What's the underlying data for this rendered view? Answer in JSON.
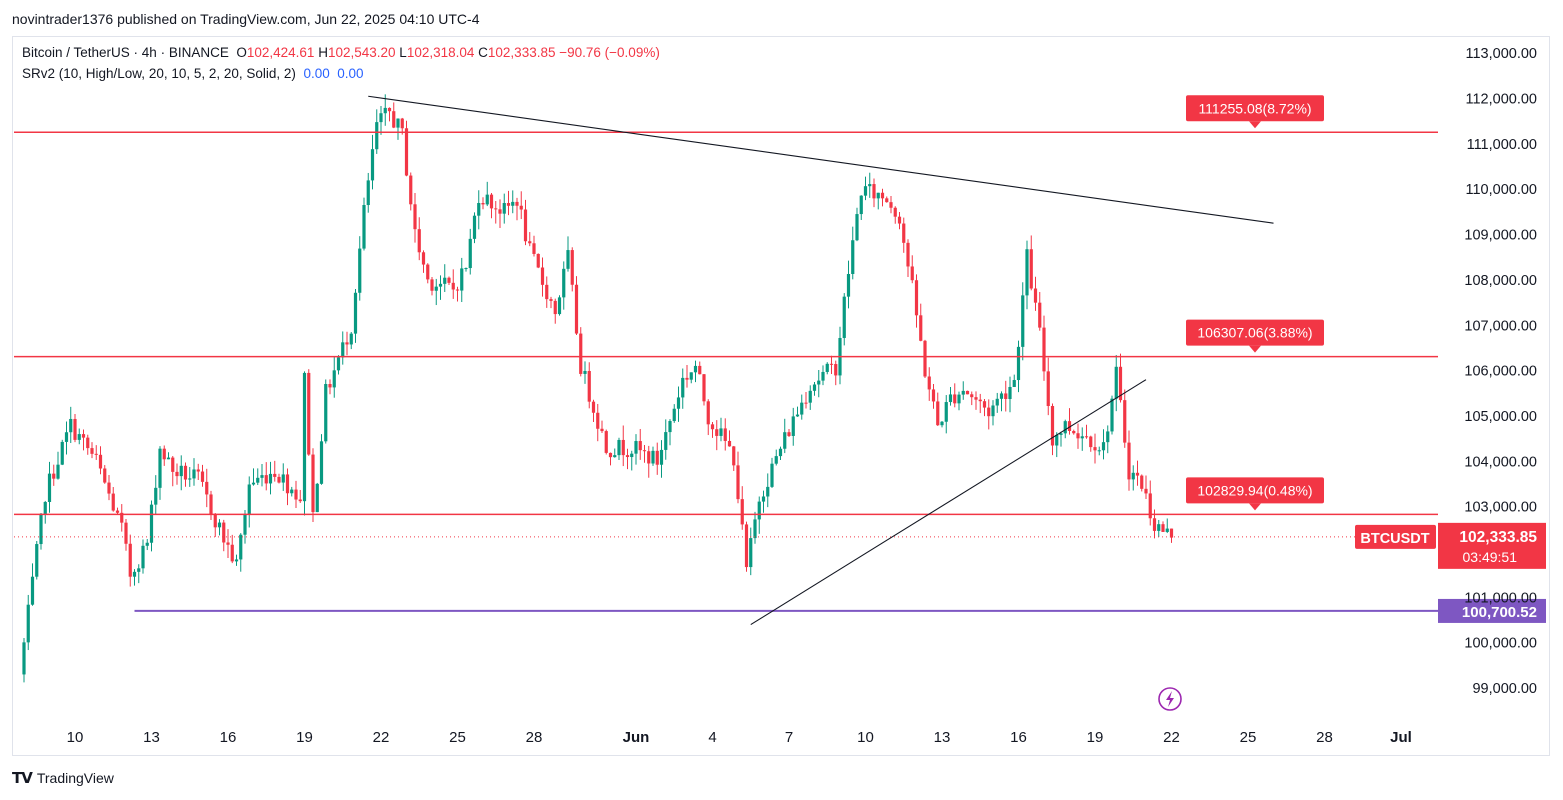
{
  "header": {
    "published_line": "novintrader1376 published on TradingView.com, Jun 22, 2025 04:10 UTC-4"
  },
  "legend": {
    "symbol": "Bitcoin / TetherUS · 4h · BINANCE",
    "open_label": "O",
    "open": "102,424.61",
    "high_label": "H",
    "high": "102,543.20",
    "low_label": "L",
    "low": "102,318.04",
    "close_label": "C",
    "close": "102,333.85",
    "change": "−90.76 (−0.09%)",
    "indicator": "SRv2 (10, High/Low, 20, 10, 5, 2, 20, Solid, 2)",
    "indicator_val1": "0.00",
    "indicator_val2": "0.00"
  },
  "branding": {
    "logo": "TV",
    "name": "TradingView"
  },
  "colors": {
    "up": "#089981",
    "down": "#f23645",
    "support_resistance": "#f23645",
    "support_line": "#7e57c2",
    "trendline": "#131722",
    "price_label": "#f23645"
  },
  "chart_data": {
    "type": "candlestick",
    "symbol": "BTCUSDT",
    "timeframe": "4h",
    "ylim": [
      98500,
      113700
    ],
    "y_ticks": [
      {
        "value": 99000,
        "label": "99,000.00"
      },
      {
        "value": 100000,
        "label": "100,000.00"
      },
      {
        "value": 101000,
        "label": "101,000.00"
      },
      {
        "value": 103000,
        "label": "103,000.00"
      },
      {
        "value": 104000,
        "label": "104,000.00"
      },
      {
        "value": 105000,
        "label": "105,000.00"
      },
      {
        "value": 106000,
        "label": "106,000.00"
      },
      {
        "value": 107000,
        "label": "107,000.00"
      },
      {
        "value": 108000,
        "label": "108,000.00"
      },
      {
        "value": 109000,
        "label": "109,000.00"
      },
      {
        "value": 110000,
        "label": "110,000.00"
      },
      {
        "value": 111000,
        "label": "111,000.00"
      },
      {
        "value": 112000,
        "label": "112,000.00"
      },
      {
        "value": 113000,
        "label": "113,000.00"
      }
    ],
    "x_ticks": [
      {
        "date": "2025-05-10",
        "label": "10"
      },
      {
        "date": "2025-05-13",
        "label": "13"
      },
      {
        "date": "2025-05-16",
        "label": "16"
      },
      {
        "date": "2025-05-19",
        "label": "19"
      },
      {
        "date": "2025-05-22",
        "label": "22"
      },
      {
        "date": "2025-05-25",
        "label": "25"
      },
      {
        "date": "2025-05-28",
        "label": "28"
      },
      {
        "date": "2025-06-01",
        "label": "Jun"
      },
      {
        "date": "2025-06-04",
        "label": "4"
      },
      {
        "date": "2025-06-07",
        "label": "7"
      },
      {
        "date": "2025-06-10",
        "label": "10"
      },
      {
        "date": "2025-06-13",
        "label": "13"
      },
      {
        "date": "2025-06-16",
        "label": "16"
      },
      {
        "date": "2025-06-19",
        "label": "19"
      },
      {
        "date": "2025-06-22",
        "label": "22"
      },
      {
        "date": "2025-06-25",
        "label": "25"
      },
      {
        "date": "2025-06-28",
        "label": "28"
      },
      {
        "date": "2025-07-01",
        "label": "Jul"
      }
    ],
    "price_path": [
      [
        "2025-05-08",
        99300
      ],
      [
        "2025-05-09",
        103300
      ],
      [
        "2025-05-10",
        104800
      ],
      [
        "2025-05-11",
        104000
      ],
      [
        "2025-05-12",
        102500
      ],
      [
        "2025-05-12T08",
        101500
      ],
      [
        "2025-05-13",
        102200
      ],
      [
        "2025-05-13T12",
        104300
      ],
      [
        "2025-05-14",
        103800
      ],
      [
        "2025-05-15",
        103600
      ],
      [
        "2025-05-16",
        102300
      ],
      [
        "2025-05-16T12",
        101700
      ],
      [
        "2025-05-17",
        103500
      ],
      [
        "2025-05-18",
        103800
      ],
      [
        "2025-05-19",
        103200
      ],
      [
        "2025-05-19T04",
        105800
      ],
      [
        "2025-05-19T12",
        102800
      ],
      [
        "2025-05-20",
        105500
      ],
      [
        "2025-05-21",
        107000
      ],
      [
        "2025-05-21T12",
        109500
      ],
      [
        "2025-05-22",
        111400
      ],
      [
        "2025-05-22T12",
        111700
      ],
      [
        "2025-05-23",
        111200
      ],
      [
        "2025-05-23T12",
        109000
      ],
      [
        "2025-05-24",
        108000
      ],
      [
        "2025-05-25",
        107800
      ],
      [
        "2025-05-25T12",
        108300
      ],
      [
        "2025-05-26",
        109900
      ],
      [
        "2025-05-27",
        109500
      ],
      [
        "2025-05-27T12",
        109800
      ],
      [
        "2025-05-28",
        108600
      ],
      [
        "2025-05-29",
        107300
      ],
      [
        "2025-05-29T12",
        108500
      ],
      [
        "2025-05-30",
        106100
      ],
      [
        "2025-05-31",
        104300
      ],
      [
        "2025-06-01",
        104300
      ],
      [
        "2025-06-02",
        104000
      ],
      [
        "2025-06-03",
        105800
      ],
      [
        "2025-06-03T12",
        106100
      ],
      [
        "2025-06-04",
        105000
      ],
      [
        "2025-06-05",
        104100
      ],
      [
        "2025-06-05T12",
        101600
      ],
      [
        "2025-06-06",
        103200
      ],
      [
        "2025-06-07",
        104500
      ],
      [
        "2025-06-08",
        105700
      ],
      [
        "2025-06-09",
        106100
      ],
      [
        "2025-06-09T12",
        108200
      ],
      [
        "2025-06-10",
        110000
      ],
      [
        "2025-06-11",
        109800
      ],
      [
        "2025-06-11T12",
        109400
      ],
      [
        "2025-06-12",
        107800
      ],
      [
        "2025-06-12T12",
        106000
      ],
      [
        "2025-06-13",
        104800
      ],
      [
        "2025-06-13T12",
        105400
      ],
      [
        "2025-06-14",
        105600
      ],
      [
        "2025-06-15",
        105100
      ],
      [
        "2025-06-16",
        105800
      ],
      [
        "2025-06-16T12",
        108500
      ],
      [
        "2025-06-17",
        106800
      ],
      [
        "2025-06-17T12",
        104500
      ],
      [
        "2025-06-18",
        104800
      ],
      [
        "2025-06-19",
        104500
      ],
      [
        "2025-06-19T12",
        104300
      ],
      [
        "2025-06-20",
        105900
      ],
      [
        "2025-06-20T12",
        103800
      ],
      [
        "2025-06-21",
        103500
      ],
      [
        "2025-06-21T12",
        102600
      ],
      [
        "2025-06-22",
        102400
      ]
    ],
    "horizontal_levels": [
      {
        "value": 111255.08,
        "label": "111255.08(8.72%)",
        "style": "red"
      },
      {
        "value": 106307.06,
        "label": "106307.06(3.88%)",
        "style": "red"
      },
      {
        "value": 102829.94,
        "label": "102829.94(0.48%)",
        "style": "red"
      }
    ],
    "support_line": {
      "value": 100700.52,
      "label": "100,700.52",
      "from": "2025-05-12T08"
    },
    "trendlines": [
      {
        "from": [
          "2025-05-21T12",
          112050
        ],
        "to": [
          "2025-06-26",
          109250
        ]
      },
      {
        "from": [
          "2025-06-05T12",
          100400
        ],
        "to": [
          "2025-06-21",
          105800
        ]
      }
    ],
    "last_price": {
      "symbol": "BTCUSDT",
      "value": "102,333.85",
      "raw": 102333.85,
      "countdown": "03:49:51"
    }
  }
}
